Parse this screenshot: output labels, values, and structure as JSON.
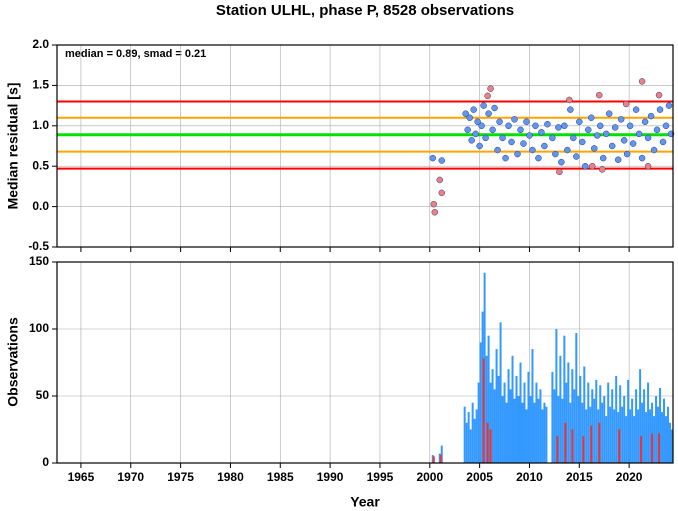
{
  "chart_data": [
    {
      "type": "scatter",
      "title": "Station ULHL, phase P, 8528 observations",
      "y_label": "Median residual [s]",
      "annotation": "median = 0.89, smad = 0.21",
      "ylim": [
        -0.5,
        2.0
      ],
      "yticks": [
        -0.5,
        {
          "value": 0,
          "label": "0.0"
        },
        0.5,
        {
          "value": 1,
          "label": "1.0"
        },
        1.5,
        {
          "value": 2,
          "label": "2.0"
        }
      ],
      "grid": true,
      "reference_lines": [
        {
          "value": 1.3,
          "color": "#ff0000"
        },
        {
          "value": 1.1,
          "color": "#ffa500"
        },
        {
          "value": 0.89,
          "color": "#00e000"
        },
        {
          "value": 0.68,
          "color": "#ffa500"
        },
        {
          "value": 0.47,
          "color": "#ff0000"
        }
      ],
      "series": [
        {
          "color": "#6495ed",
          "x": [
            2000.3,
            2001.2,
            2003.6,
            2003.8,
            2004.0,
            2004.2,
            2004.4,
            2004.6,
            2004.8,
            2005.0,
            2005.2,
            2005.4,
            2005.6,
            2005.9,
            2006.3,
            2006.5,
            2006.8,
            2007.0,
            2007.3,
            2007.6,
            2007.9,
            2008.2,
            2008.5,
            2008.8,
            2009.1,
            2009.4,
            2009.7,
            2010.0,
            2010.3,
            2010.6,
            2010.9,
            2011.2,
            2011.5,
            2011.8,
            2012.3,
            2012.6,
            2012.9,
            2013.2,
            2013.5,
            2013.8,
            2014.1,
            2014.4,
            2014.7,
            2015.0,
            2015.3,
            2015.6,
            2015.9,
            2016.2,
            2016.5,
            2016.8,
            2017.1,
            2017.4,
            2017.7,
            2018.0,
            2018.3,
            2018.6,
            2018.9,
            2019.2,
            2019.5,
            2019.8,
            2020.1,
            2020.4,
            2020.7,
            2021.0,
            2021.3,
            2021.6,
            2021.9,
            2022.2,
            2022.5,
            2022.8,
            2023.1,
            2023.4,
            2023.7,
            2024.0,
            2024.2
          ],
          "values": [
            0.6,
            0.57,
            1.15,
            0.95,
            1.1,
            0.82,
            1.2,
            0.9,
            1.05,
            0.75,
            1.0,
            1.25,
            0.85,
            1.15,
            0.95,
            1.22,
            0.7,
            1.05,
            0.85,
            0.6,
            1.0,
            0.8,
            1.08,
            0.65,
            0.95,
            0.78,
            1.05,
            0.88,
            0.7,
            1.0,
            0.6,
            0.92,
            0.75,
            1.02,
            0.85,
            0.65,
            0.98,
            0.55,
            1.0,
            0.7,
            1.2,
            0.85,
            0.62,
            1.05,
            0.8,
            0.5,
            0.95,
            1.1,
            0.72,
            0.88,
            1.0,
            0.6,
            0.9,
            1.15,
            0.75,
            0.98,
            0.58,
            1.08,
            0.82,
            0.65,
            1.0,
            0.78,
            1.2,
            0.9,
            0.6,
            1.05,
            0.85,
            1.12,
            0.7,
            0.95,
            1.2,
            0.8,
            1.0,
            1.25,
            0.9
          ]
        },
        {
          "color": "#f08080",
          "x": [
            2000.4,
            2000.5,
            2001.0,
            2001.2,
            2005.8,
            2006.1,
            2013.0,
            2014.0,
            2016.3,
            2017.0,
            2017.3,
            2019.7,
            2021.3,
            2021.9,
            2023.0
          ],
          "values": [
            0.03,
            -0.07,
            0.33,
            0.17,
            1.37,
            1.46,
            0.43,
            1.32,
            0.5,
            1.38,
            0.46,
            1.27,
            1.55,
            0.5,
            1.38
          ]
        }
      ]
    },
    {
      "type": "bar",
      "y_label": "Observations",
      "x_label": "Year",
      "xlim": [
        1962.6,
        2024.4
      ],
      "xticks": [
        1965,
        1970,
        1975,
        1980,
        1985,
        1990,
        1995,
        2000,
        2005,
        2010,
        2015,
        2020
      ],
      "ylim": [
        0,
        150
      ],
      "yticks": [
        0,
        50,
        100,
        150
      ],
      "grid": true,
      "series": [
        {
          "color": "#3399ff",
          "x": [
            2000.3,
            2001.0,
            2001.2,
            2003.5,
            2003.7,
            2003.9,
            2004.1,
            2004.3,
            2004.5,
            2004.7,
            2004.9,
            2005.1,
            2005.3,
            2005.5,
            2005.7,
            2005.9,
            2006.1,
            2006.3,
            2006.5,
            2006.7,
            2006.9,
            2007.1,
            2007.3,
            2007.5,
            2007.7,
            2007.9,
            2008.1,
            2008.3,
            2008.5,
            2008.7,
            2008.9,
            2009.1,
            2009.3,
            2009.5,
            2009.7,
            2009.9,
            2010.1,
            2010.3,
            2010.5,
            2010.7,
            2010.9,
            2011.1,
            2011.3,
            2011.5,
            2011.7,
            2012.3,
            2012.5,
            2012.7,
            2012.9,
            2013.1,
            2013.3,
            2013.5,
            2013.7,
            2013.9,
            2014.1,
            2014.3,
            2014.5,
            2014.7,
            2014.9,
            2015.1,
            2015.3,
            2015.5,
            2015.7,
            2015.9,
            2016.1,
            2016.3,
            2016.5,
            2016.7,
            2016.9,
            2017.1,
            2017.3,
            2017.5,
            2017.7,
            2017.9,
            2018.1,
            2018.3,
            2018.5,
            2018.7,
            2018.9,
            2019.1,
            2019.3,
            2019.5,
            2019.7,
            2019.9,
            2020.1,
            2020.3,
            2020.5,
            2020.7,
            2020.9,
            2021.1,
            2021.3,
            2021.5,
            2021.7,
            2021.9,
            2022.1,
            2022.3,
            2022.5,
            2022.7,
            2022.9,
            2023.1,
            2023.3,
            2023.5,
            2023.7,
            2023.9,
            2024.1,
            2024.3
          ],
          "values": [
            6,
            7,
            13,
            42,
            30,
            38,
            25,
            45,
            33,
            40,
            60,
            90,
            113,
            142,
            80,
            95,
            60,
            70,
            55,
            85,
            65,
            105,
            50,
            60,
            45,
            70,
            55,
            80,
            48,
            65,
            50,
            75,
            45,
            60,
            40,
            68,
            50,
            85,
            45,
            60,
            48,
            55,
            40,
            45,
            42,
            68,
            55,
            100,
            50,
            80,
            48,
            95,
            60,
            75,
            45,
            70,
            55,
            97,
            50,
            65,
            45,
            72,
            40,
            60,
            42,
            55,
            48,
            62,
            40,
            58,
            45,
            50,
            35,
            60,
            42,
            55,
            40,
            65,
            38,
            58,
            42,
            50,
            35,
            62,
            40,
            48,
            35,
            55,
            40,
            70,
            45,
            55,
            38,
            60,
            40,
            45,
            35,
            50,
            42,
            56,
            38,
            48,
            35,
            42,
            30,
            25
          ]
        },
        {
          "color": "#ee3333",
          "x": [
            2000.4,
            2001.1,
            2005.4,
            2005.8,
            2006.1,
            2012.8,
            2013.6,
            2014.3,
            2015.4,
            2016.2,
            2017.0,
            2019.0,
            2021.2,
            2022.3,
            2023.0
          ],
          "values": [
            5,
            6,
            78,
            30,
            25,
            20,
            30,
            25,
            20,
            28,
            30,
            25,
            20,
            22,
            22
          ]
        }
      ]
    }
  ]
}
